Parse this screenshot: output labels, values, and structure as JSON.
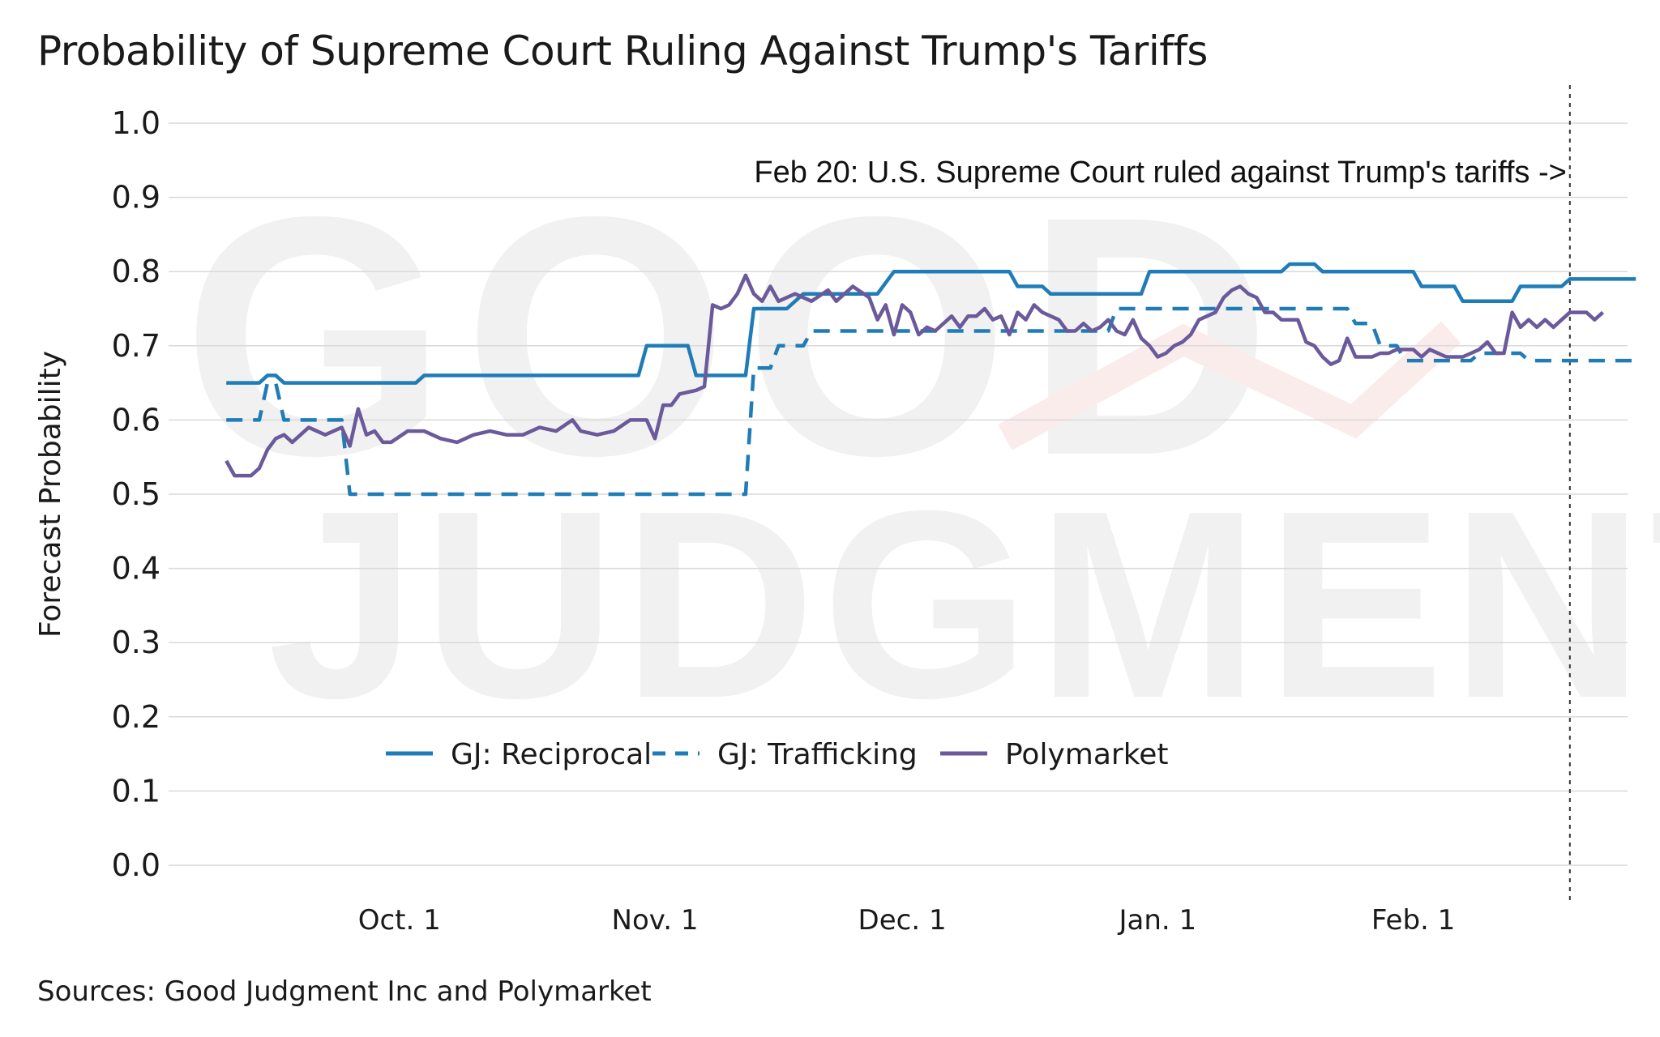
{
  "title": "Probability of Supreme Court Ruling Against Trump's Tariffs",
  "source": "Sources: Good Judgment Inc and Polymarket",
  "watermark": [
    "GOOD",
    "JUDGMENT"
  ],
  "chart_data": {
    "type": "line",
    "title": "Probability of Supreme Court Ruling Against Trump's Tariffs",
    "xlabel": "",
    "ylabel": "Forecast Probability",
    "ylim": [
      0,
      1
    ],
    "yticks": [
      "0.0",
      "0.1",
      "0.2",
      "0.3",
      "0.4",
      "0.5",
      "0.6",
      "0.7",
      "0.8",
      "0.9",
      "1.0"
    ],
    "xlim": [
      "2025-09-03",
      "2026-02-27"
    ],
    "xticks": [
      {
        "date": "2025-10-01",
        "label": "Oct. 1"
      },
      {
        "date": "2025-11-01",
        "label": "Nov. 1"
      },
      {
        "date": "2025-12-01",
        "label": "Dec. 1"
      },
      {
        "date": "2026-01-01",
        "label": "Jan. 1"
      },
      {
        "date": "2026-02-01",
        "label": "Feb. 1"
      }
    ],
    "grid": true,
    "legend_position": "bottom-center",
    "annotation": {
      "date": "2026-02-20",
      "text": "Feb 20: U.S. Supreme Court ruled against Trump's tariffs ->"
    },
    "series": [
      {
        "name": "GJ: Reciprocal",
        "style": "solid",
        "color": "#1f7cb7",
        "points": [
          [
            "2025-09-10",
            0.65
          ],
          [
            "2025-09-14",
            0.65
          ],
          [
            "2025-09-15",
            0.66
          ],
          [
            "2025-09-16",
            0.66
          ],
          [
            "2025-09-17",
            0.65
          ],
          [
            "2025-10-03",
            0.65
          ],
          [
            "2025-10-04",
            0.66
          ],
          [
            "2025-10-30",
            0.66
          ],
          [
            "2025-10-31",
            0.7
          ],
          [
            "2025-11-05",
            0.7
          ],
          [
            "2025-11-06",
            0.66
          ],
          [
            "2025-11-12",
            0.66
          ],
          [
            "2025-11-13",
            0.75
          ],
          [
            "2025-11-17",
            0.75
          ],
          [
            "2025-11-19",
            0.77
          ],
          [
            "2025-11-28",
            0.77
          ],
          [
            "2025-11-30",
            0.8
          ],
          [
            "2025-12-14",
            0.8
          ],
          [
            "2025-12-15",
            0.78
          ],
          [
            "2025-12-18",
            0.78
          ],
          [
            "2025-12-19",
            0.77
          ],
          [
            "2025-12-30",
            0.77
          ],
          [
            "2025-12-31",
            0.8
          ],
          [
            "2026-01-16",
            0.8
          ],
          [
            "2026-01-17",
            0.81
          ],
          [
            "2026-01-20",
            0.81
          ],
          [
            "2026-01-21",
            0.8
          ],
          [
            "2026-02-01",
            0.8
          ],
          [
            "2026-02-02",
            0.78
          ],
          [
            "2026-02-06",
            0.78
          ],
          [
            "2026-02-07",
            0.76
          ],
          [
            "2026-02-13",
            0.76
          ],
          [
            "2026-02-14",
            0.78
          ],
          [
            "2026-02-19",
            0.78
          ],
          [
            "2026-02-20",
            0.79
          ],
          [
            "2026-02-28",
            0.79
          ]
        ]
      },
      {
        "name": "GJ: Trafficking",
        "style": "dashed",
        "color": "#1f7cb7",
        "points": [
          [
            "2025-09-10",
            0.6
          ],
          [
            "2025-09-14",
            0.6
          ],
          [
            "2025-09-15",
            0.65
          ],
          [
            "2025-09-16",
            0.65
          ],
          [
            "2025-09-17",
            0.6
          ],
          [
            "2025-09-24",
            0.6
          ],
          [
            "2025-09-25",
            0.5
          ],
          [
            "2025-11-12",
            0.5
          ],
          [
            "2025-11-13",
            0.67
          ],
          [
            "2025-11-15",
            0.67
          ],
          [
            "2025-11-16",
            0.7
          ],
          [
            "2025-11-19",
            0.7
          ],
          [
            "2025-11-20",
            0.72
          ],
          [
            "2025-12-26",
            0.72
          ],
          [
            "2025-12-27",
            0.75
          ],
          [
            "2026-01-24",
            0.75
          ],
          [
            "2026-01-25",
            0.73
          ],
          [
            "2026-01-27",
            0.73
          ],
          [
            "2026-01-28",
            0.7
          ],
          [
            "2026-01-30",
            0.7
          ],
          [
            "2026-01-31",
            0.68
          ],
          [
            "2026-02-08",
            0.68
          ],
          [
            "2026-02-09",
            0.69
          ],
          [
            "2026-02-14",
            0.69
          ],
          [
            "2026-02-15",
            0.68
          ],
          [
            "2026-02-28",
            0.68
          ]
        ]
      },
      {
        "name": "Polymarket",
        "style": "solid",
        "color": "#6b5a9b",
        "points": [
          [
            "2025-09-10",
            0.545
          ],
          [
            "2025-09-11",
            0.525
          ],
          [
            "2025-09-13",
            0.525
          ],
          [
            "2025-09-14",
            0.535
          ],
          [
            "2025-09-15",
            0.56
          ],
          [
            "2025-09-16",
            0.575
          ],
          [
            "2025-09-17",
            0.58
          ],
          [
            "2025-09-18",
            0.57
          ],
          [
            "2025-09-20",
            0.59
          ],
          [
            "2025-09-22",
            0.58
          ],
          [
            "2025-09-24",
            0.59
          ],
          [
            "2025-09-25",
            0.565
          ],
          [
            "2025-09-26",
            0.615
          ],
          [
            "2025-09-27",
            0.58
          ],
          [
            "2025-09-28",
            0.585
          ],
          [
            "2025-09-29",
            0.57
          ],
          [
            "2025-09-30",
            0.57
          ],
          [
            "2025-10-02",
            0.585
          ],
          [
            "2025-10-04",
            0.585
          ],
          [
            "2025-10-06",
            0.575
          ],
          [
            "2025-10-08",
            0.57
          ],
          [
            "2025-10-10",
            0.58
          ],
          [
            "2025-10-12",
            0.585
          ],
          [
            "2025-10-14",
            0.58
          ],
          [
            "2025-10-16",
            0.58
          ],
          [
            "2025-10-18",
            0.59
          ],
          [
            "2025-10-20",
            0.585
          ],
          [
            "2025-10-22",
            0.6
          ],
          [
            "2025-10-23",
            0.585
          ],
          [
            "2025-10-25",
            0.58
          ],
          [
            "2025-10-27",
            0.585
          ],
          [
            "2025-10-29",
            0.6
          ],
          [
            "2025-10-31",
            0.6
          ],
          [
            "2025-11-01",
            0.575
          ],
          [
            "2025-11-02",
            0.62
          ],
          [
            "2025-11-03",
            0.62
          ],
          [
            "2025-11-04",
            0.635
          ],
          [
            "2025-11-06",
            0.64
          ],
          [
            "2025-11-07",
            0.645
          ],
          [
            "2025-11-08",
            0.755
          ],
          [
            "2025-11-09",
            0.75
          ],
          [
            "2025-11-10",
            0.755
          ],
          [
            "2025-11-11",
            0.77
          ],
          [
            "2025-11-12",
            0.795
          ],
          [
            "2025-11-13",
            0.77
          ],
          [
            "2025-11-14",
            0.76
          ],
          [
            "2025-11-15",
            0.78
          ],
          [
            "2025-11-16",
            0.76
          ],
          [
            "2025-11-18",
            0.77
          ],
          [
            "2025-11-20",
            0.76
          ],
          [
            "2025-11-22",
            0.775
          ],
          [
            "2025-11-23",
            0.76
          ],
          [
            "2025-11-25",
            0.78
          ],
          [
            "2025-11-27",
            0.765
          ],
          [
            "2025-11-28",
            0.735
          ],
          [
            "2025-11-29",
            0.755
          ],
          [
            "2025-11-30",
            0.715
          ],
          [
            "2025-12-01",
            0.755
          ],
          [
            "2025-12-02",
            0.745
          ],
          [
            "2025-12-03",
            0.715
          ],
          [
            "2025-12-04",
            0.725
          ],
          [
            "2025-12-05",
            0.72
          ],
          [
            "2025-12-07",
            0.74
          ],
          [
            "2025-12-08",
            0.725
          ],
          [
            "2025-12-09",
            0.74
          ],
          [
            "2025-12-10",
            0.74
          ],
          [
            "2025-12-11",
            0.75
          ],
          [
            "2025-12-12",
            0.735
          ],
          [
            "2025-12-13",
            0.74
          ],
          [
            "2025-12-14",
            0.715
          ],
          [
            "2025-12-15",
            0.745
          ],
          [
            "2025-12-16",
            0.735
          ],
          [
            "2025-12-17",
            0.755
          ],
          [
            "2025-12-18",
            0.745
          ],
          [
            "2025-12-20",
            0.735
          ],
          [
            "2025-12-21",
            0.72
          ],
          [
            "2025-12-22",
            0.72
          ],
          [
            "2025-12-23",
            0.73
          ],
          [
            "2025-12-24",
            0.72
          ],
          [
            "2025-12-25",
            0.725
          ],
          [
            "2025-12-26",
            0.735
          ],
          [
            "2025-12-27",
            0.72
          ],
          [
            "2025-12-28",
            0.715
          ],
          [
            "2025-12-29",
            0.735
          ],
          [
            "2025-12-30",
            0.71
          ],
          [
            "2025-12-31",
            0.7
          ],
          [
            "2026-01-01",
            0.685
          ],
          [
            "2026-01-02",
            0.69
          ],
          [
            "2026-01-03",
            0.7
          ],
          [
            "2026-01-04",
            0.705
          ],
          [
            "2026-01-05",
            0.715
          ],
          [
            "2026-01-06",
            0.735
          ],
          [
            "2026-01-08",
            0.745
          ],
          [
            "2026-01-09",
            0.765
          ],
          [
            "2026-01-10",
            0.775
          ],
          [
            "2026-01-11",
            0.78
          ],
          [
            "2026-01-12",
            0.77
          ],
          [
            "2026-01-13",
            0.765
          ],
          [
            "2026-01-14",
            0.745
          ],
          [
            "2026-01-15",
            0.745
          ],
          [
            "2026-01-16",
            0.735
          ],
          [
            "2026-01-18",
            0.735
          ],
          [
            "2026-01-19",
            0.705
          ],
          [
            "2026-01-20",
            0.7
          ],
          [
            "2026-01-21",
            0.685
          ],
          [
            "2026-01-22",
            0.675
          ],
          [
            "2026-01-23",
            0.68
          ],
          [
            "2026-01-24",
            0.71
          ],
          [
            "2026-01-25",
            0.685
          ],
          [
            "2026-01-27",
            0.685
          ],
          [
            "2026-01-28",
            0.69
          ],
          [
            "2026-01-29",
            0.69
          ],
          [
            "2026-01-30",
            0.695
          ],
          [
            "2026-02-01",
            0.695
          ],
          [
            "2026-02-02",
            0.685
          ],
          [
            "2026-02-03",
            0.695
          ],
          [
            "2026-02-05",
            0.685
          ],
          [
            "2026-02-07",
            0.685
          ],
          [
            "2026-02-08",
            0.69
          ],
          [
            "2026-02-09",
            0.695
          ],
          [
            "2026-02-10",
            0.705
          ],
          [
            "2026-02-11",
            0.69
          ],
          [
            "2026-02-12",
            0.69
          ],
          [
            "2026-02-13",
            0.745
          ],
          [
            "2026-02-14",
            0.725
          ],
          [
            "2026-02-15",
            0.735
          ],
          [
            "2026-02-16",
            0.725
          ],
          [
            "2026-02-17",
            0.735
          ],
          [
            "2026-02-18",
            0.725
          ],
          [
            "2026-02-19",
            0.735
          ],
          [
            "2026-02-20",
            0.745
          ],
          [
            "2026-02-22",
            0.745
          ],
          [
            "2026-02-23",
            0.735
          ],
          [
            "2026-02-24",
            0.745
          ]
        ]
      }
    ]
  }
}
